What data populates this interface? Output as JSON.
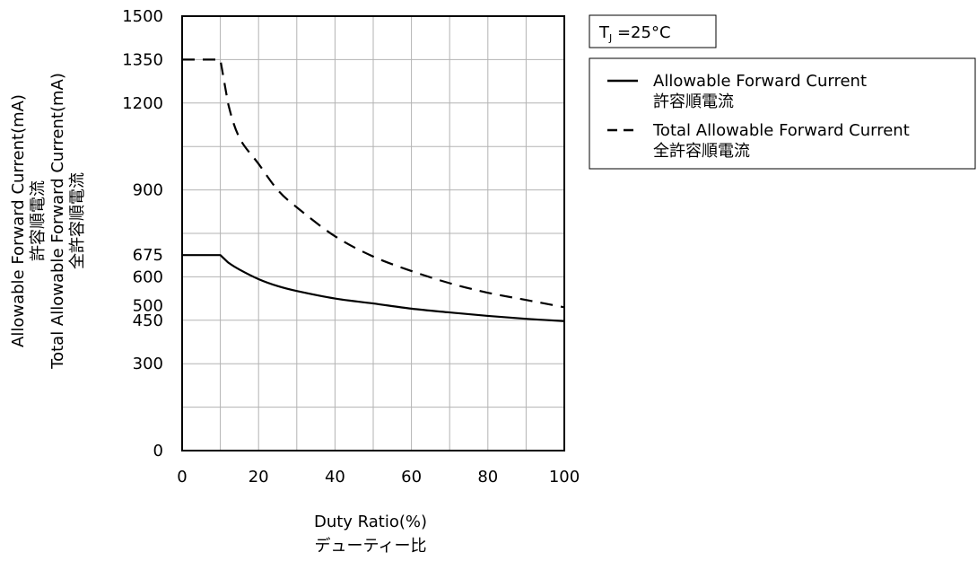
{
  "chart_data": {
    "type": "line",
    "xlabel_lines": [
      "Duty Ratio(%)",
      "デューティー比"
    ],
    "ylabel_lines": [
      "Allowable Forward Current(mA)",
      "許容順電流",
      "Total Allowable Forward Current(mA)",
      "全許容順電流"
    ],
    "xlim": [
      0,
      100
    ],
    "ylim": [
      0,
      1500
    ],
    "x_ticks": [
      0,
      20,
      40,
      60,
      80,
      100
    ],
    "x_tick_labels": [
      "0",
      "20",
      "40",
      "60",
      "80",
      "100"
    ],
    "y_ticks": [
      0,
      300,
      450,
      500,
      600,
      675,
      900,
      1200,
      1350,
      1500
    ],
    "y_tick_labels": [
      "0",
      "300",
      "450",
      "500",
      "600",
      "675",
      "900",
      "1200",
      "1350",
      "1500"
    ],
    "x_grid": [
      0,
      10,
      20,
      30,
      40,
      50,
      60,
      70,
      80,
      90,
      100
    ],
    "y_grid": [
      0,
      150,
      300,
      450,
      600,
      750,
      900,
      1050,
      1200,
      1350,
      1500
    ],
    "grid": true,
    "condition": {
      "main": "T",
      "sub": "J",
      "value": " =25°C"
    },
    "legend_position": "right",
    "series": [
      {
        "name_lines": [
          "Allowable Forward Current",
          "許容順電流"
        ],
        "style": "solid",
        "x": [
          0,
          10,
          12,
          15,
          20,
          25,
          30,
          40,
          50,
          60,
          70,
          80,
          90,
          100
        ],
        "y": [
          675,
          675,
          650,
          625,
          592,
          568,
          551,
          525,
          508,
          490,
          477,
          465,
          455,
          447
        ]
      },
      {
        "name_lines": [
          "Total Allowable Forward Current",
          "全許容順電流"
        ],
        "style": "dashed",
        "x": [
          0,
          10,
          12,
          15,
          20,
          25,
          30,
          40,
          50,
          60,
          70,
          80,
          90,
          100
        ],
        "y": [
          1350,
          1350,
          1200,
          1080,
          990,
          900,
          840,
          740,
          670,
          620,
          578,
          545,
          520,
          495
        ]
      }
    ]
  }
}
